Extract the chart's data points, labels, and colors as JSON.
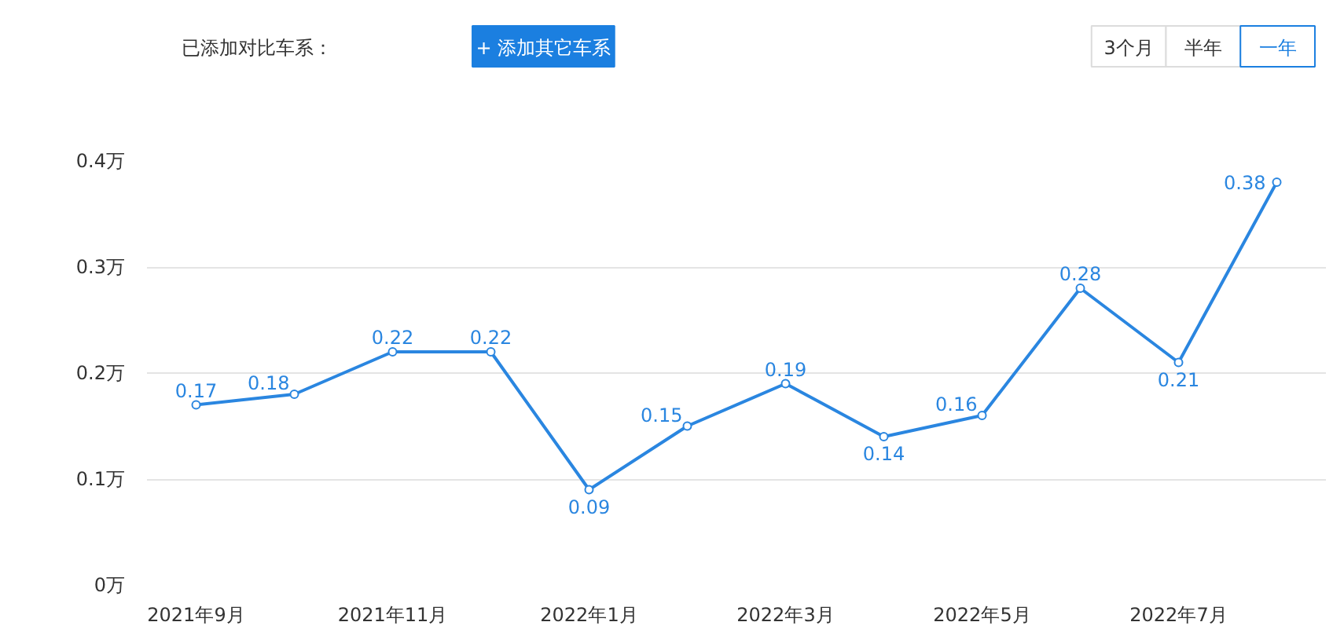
{
  "chart_data": {
    "type": "line",
    "annotations": [
      "已添加对比车系：",
      "+ 添加其它车系",
      "3个月",
      "半年",
      "一年"
    ],
    "categories": [
      "2021年9月",
      null,
      "2021年11月",
      null,
      "2022年1月",
      null,
      "2022年3月",
      null,
      "2022年5月",
      null,
      "2022年7月",
      null
    ],
    "series": [
      {
        "color": "#2a86e0",
        "values": [
          0.17,
          0.18,
          0.22,
          0.22,
          0.09,
          0.15,
          0.19,
          0.14,
          0.16,
          0.28,
          0.21,
          0.38
        ]
      }
    ],
    "ylim": [
      0,
      0.4
    ],
    "yticks": [
      {
        "value": 0,
        "label": "0万"
      },
      {
        "value": 0.1,
        "label": "0.1万"
      },
      {
        "value": 0.2,
        "label": "0.2万"
      },
      {
        "value": 0.3,
        "label": "0.3万"
      },
      {
        "value": 0.4,
        "label": "0.4万"
      }
    ],
    "grid": "y",
    "marker": "circle",
    "line_style": "solid",
    "data_labels": true
  }
}
